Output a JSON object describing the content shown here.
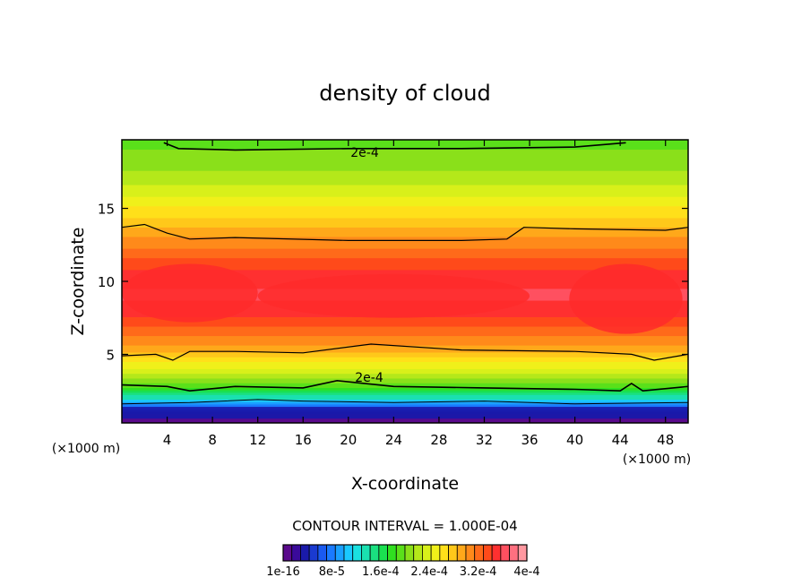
{
  "chart_data": {
    "type": "heatmap",
    "title": "density of cloud",
    "xlabel": "X-coordinate",
    "ylabel": "Z-coordinate",
    "x_unit": "(×1000 m)",
    "x_unit_right": "(×1000 m)",
    "xlim": [
      0,
      50
    ],
    "ylim": [
      0.3,
      19.7
    ],
    "x_ticks": [
      4,
      8,
      12,
      16,
      20,
      24,
      28,
      32,
      36,
      40,
      44,
      48
    ],
    "y_ticks": [
      5,
      10,
      15
    ],
    "contour_levels": [
      0.0002,
      0.0003
    ],
    "contour_label_text": "2e-4",
    "contour_interval_text": "CONTOUR INTERVAL = 1.000E-04",
    "colorbar": {
      "labels": [
        "1e-16",
        "8e-5",
        "1.6e-4",
        "2.4e-4",
        "3.2e-4",
        "4e-4"
      ],
      "label_values": [
        0,
        8e-05,
        0.00016,
        0.00024,
        0.00032,
        0.0004
      ],
      "colors": [
        "#5a0a8c",
        "#3a0a9a",
        "#1a1aaa",
        "#1a3ad0",
        "#1a5af0",
        "#1a7aff",
        "#1aa0ff",
        "#1ac8ff",
        "#1ae0e0",
        "#1ae0b0",
        "#1ae080",
        "#1ae050",
        "#30e020",
        "#5ae01a",
        "#8ae01a",
        "#b4e81a",
        "#d8f01a",
        "#f0f01a",
        "#ffe01a",
        "#ffc81a",
        "#ffa81a",
        "#ff8a1a",
        "#ff6a1a",
        "#ff4a1a",
        "#ff3030",
        "#ff5060",
        "#ff7080",
        "#ff98a0"
      ],
      "range": [
        0,
        0.0004
      ]
    },
    "vertical_profile": {
      "z": [
        0.3,
        1.0,
        1.5,
        2.0,
        2.5,
        3.0,
        3.5,
        4.0,
        4.5,
        5.0,
        5.5,
        6.0,
        7.0,
        8.0,
        9.0,
        10.0,
        11.0,
        12.0,
        13.0,
        14.0,
        15.0,
        16.0,
        17.0,
        18.0,
        19.0,
        19.7
      ],
      "density": [
        0.0,
        3e-05,
        8e-05,
        0.00013,
        0.00017,
        0.0002,
        0.00022,
        0.00024,
        0.00026,
        0.00028,
        0.000295,
        0.00031,
        0.00033,
        0.00035,
        0.00036,
        0.000355,
        0.00034,
        0.00032,
        0.0003,
        0.00028,
        0.00026,
        0.00024,
        0.00022,
        0.00021,
        0.0002,
        0.00019
      ]
    }
  }
}
